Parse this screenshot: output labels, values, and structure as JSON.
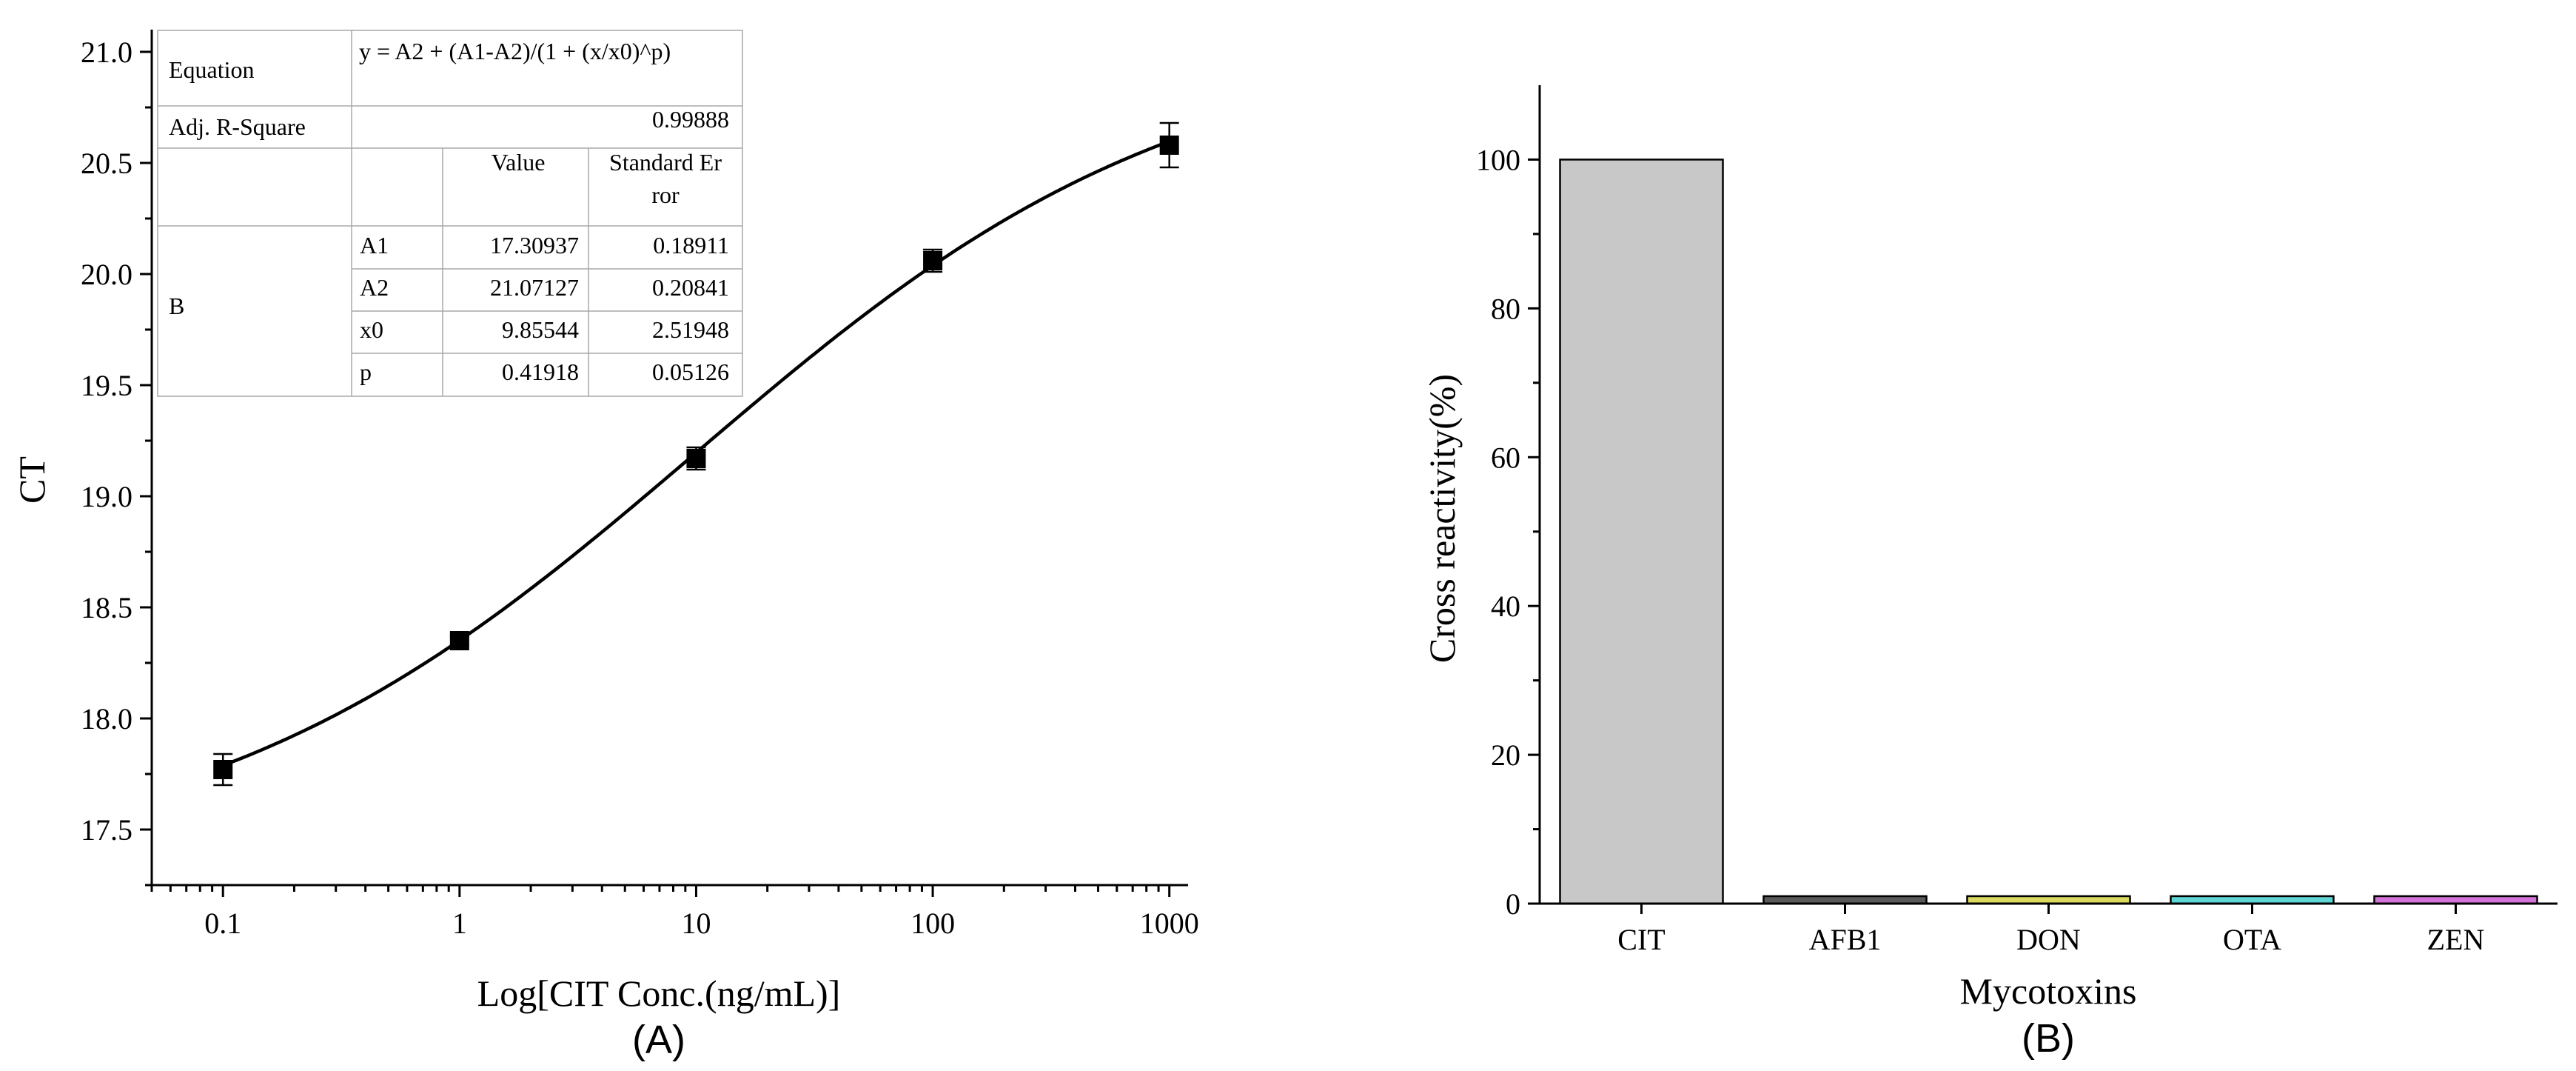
{
  "chart_data": [
    {
      "type": "scatter",
      "panel_label": "(A)",
      "xlabel": "Log[CIT Conc.(ng/mL)]",
      "ylabel": "CT",
      "xscale": "log",
      "xlim": [
        0.05,
        1200
      ],
      "ylim": [
        17.25,
        21.1
      ],
      "x_tick_labels": [
        "0.1",
        "1",
        "10",
        "100",
        "1000"
      ],
      "x_ticks": [
        0.1,
        1,
        10,
        100,
        1000
      ],
      "y_tick_labels": [
        "17.5",
        "18.0",
        "18.5",
        "19.0",
        "19.5",
        "20.0",
        "20.5",
        "21.0"
      ],
      "y_ticks": [
        17.5,
        18.0,
        18.5,
        19.0,
        19.5,
        20.0,
        20.5,
        21.0
      ],
      "series": [
        {
          "name": "B",
          "x": [
            0.1,
            1,
            10,
            100,
            1000
          ],
          "y": [
            17.77,
            18.35,
            19.17,
            20.06,
            20.58
          ],
          "error": [
            0.07,
            0.02,
            0.05,
            0.05,
            0.1
          ]
        }
      ],
      "fit": {
        "equation": "y = A2 + (A1-A2)/(1 + (x/x0)^p)",
        "A1": 17.30937,
        "A2": 21.07127,
        "x0": 9.85544,
        "p": 0.41918
      },
      "fit_table": {
        "equation_label": "Equation",
        "equation_value": "y = A2 + (A1-A2)/(1 + (x/x0)^p)",
        "r2_label": "Adj. R-Square",
        "r2_value": "0.99888",
        "series_label": "B",
        "value_header": "Value",
        "error_header_1": "Standard Er",
        "error_header_2": "ror",
        "rows": [
          {
            "param": "A1",
            "value": "17.30937",
            "error": "0.18911"
          },
          {
            "param": "A2",
            "value": "21.07127",
            "error": "0.20841"
          },
          {
            "param": "x0",
            "value": "9.85544",
            "error": "2.51948"
          },
          {
            "param": "p",
            "value": "0.41918",
            "error": "0.05126"
          }
        ]
      }
    },
    {
      "type": "bar",
      "panel_label": "(B)",
      "xlabel": "Mycotoxins",
      "ylabel": "Cross reactivity(%)",
      "ylim": [
        0,
        110
      ],
      "y_ticks": [
        0,
        20,
        40,
        60,
        80,
        100
      ],
      "y_tick_labels": [
        "0",
        "20",
        "40",
        "60",
        "80",
        "100"
      ],
      "categories": [
        "CIT",
        "AFB1",
        "DON",
        "OTA",
        "ZEN"
      ],
      "values": [
        100,
        1,
        1,
        1,
        1
      ],
      "colors": [
        "#c8c8c8",
        "#595959",
        "#d9d95f",
        "#5fd6d6",
        "#d373d9"
      ]
    }
  ]
}
